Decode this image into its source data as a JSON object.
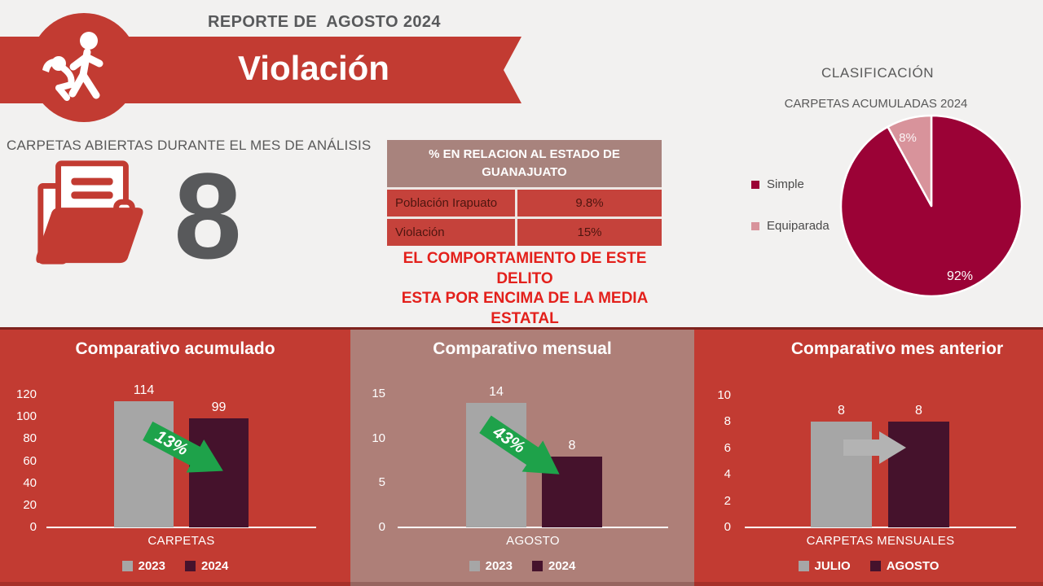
{
  "page": {
    "background": "#F2F1F0"
  },
  "header": {
    "report_title": "REPORTE DE  AGOSTO 2024",
    "banner_title": "Violación",
    "banner_color": "#C23B32"
  },
  "kpi": {
    "label": "CARPETAS ABIERTAS DURANTE EL MES DE ANÁLISIS",
    "value": 8,
    "value_color": "#58595B"
  },
  "state_table": {
    "header": "% EN RELACION AL ESTADO DE GUANAJUATO",
    "header_bg": "#A8837D",
    "row_bg": "#C5423B",
    "rows": [
      {
        "label": "Población Irapuato",
        "value": "9.8%"
      },
      {
        "label": "Violación",
        "value": "15%"
      }
    ]
  },
  "warning": {
    "lines": [
      "EL COMPORTAMIENTO DE ESTE DELITO",
      "ESTA POR ENCIMA DE LA MEDIA ESTATAL"
    ],
    "color": "#E3201B"
  },
  "classification": {
    "title": "CLASIFICACIÓN"
  },
  "chart_data": [
    {
      "type": "pie",
      "title": "CARPETAS ACUMULADAS 2024",
      "labels": [
        "Simple",
        "Equiparada"
      ],
      "values": [
        92,
        8
      ],
      "value_labels": [
        "92%",
        "8%"
      ],
      "colors": [
        "#9B0236",
        "#D8939B"
      ],
      "legend_position": "left"
    },
    {
      "type": "bar",
      "title": "Comparativo acumulado",
      "categories": [
        "CARPETAS"
      ],
      "series": [
        {
          "name": "2023",
          "values": [
            114
          ],
          "color": "#A6A6A6"
        },
        {
          "name": "2024",
          "values": [
            99
          ],
          "color": "#45122C"
        }
      ],
      "ylim": [
        0,
        120
      ],
      "yticks": [
        120,
        100,
        80,
        60,
        40,
        20,
        0
      ],
      "annotation": {
        "label": "13%",
        "shape": "arrow-down-right",
        "color": "#1EA24A"
      },
      "panel_bg": "#C23B32"
    },
    {
      "type": "bar",
      "title": "Comparativo mensual",
      "categories": [
        "AGOSTO"
      ],
      "series": [
        {
          "name": "2023",
          "values": [
            14
          ],
          "color": "#A6A6A6"
        },
        {
          "name": "2024",
          "values": [
            8
          ],
          "color": "#45122C"
        }
      ],
      "ylim": [
        0,
        15
      ],
      "yticks": [
        15,
        10,
        5,
        0
      ],
      "annotation": {
        "label": "43%",
        "shape": "arrow-down-right",
        "color": "#1EA24A"
      },
      "panel_bg": "#AE7F78"
    },
    {
      "type": "bar",
      "title": "Comparativo mes anterior",
      "categories": [
        "CARPETAS MENSUALES"
      ],
      "series": [
        {
          "name": "JULIO",
          "values": [
            8
          ],
          "color": "#A6A6A6"
        },
        {
          "name": "AGOSTO",
          "values": [
            8
          ],
          "color": "#45122C"
        }
      ],
      "ylim": [
        0,
        10
      ],
      "yticks": [
        10,
        8,
        6,
        4,
        2,
        0
      ],
      "annotation": {
        "label": "",
        "shape": "arrow-right",
        "color": "#B3B3B3"
      },
      "panel_bg": "#C23B32"
    }
  ]
}
